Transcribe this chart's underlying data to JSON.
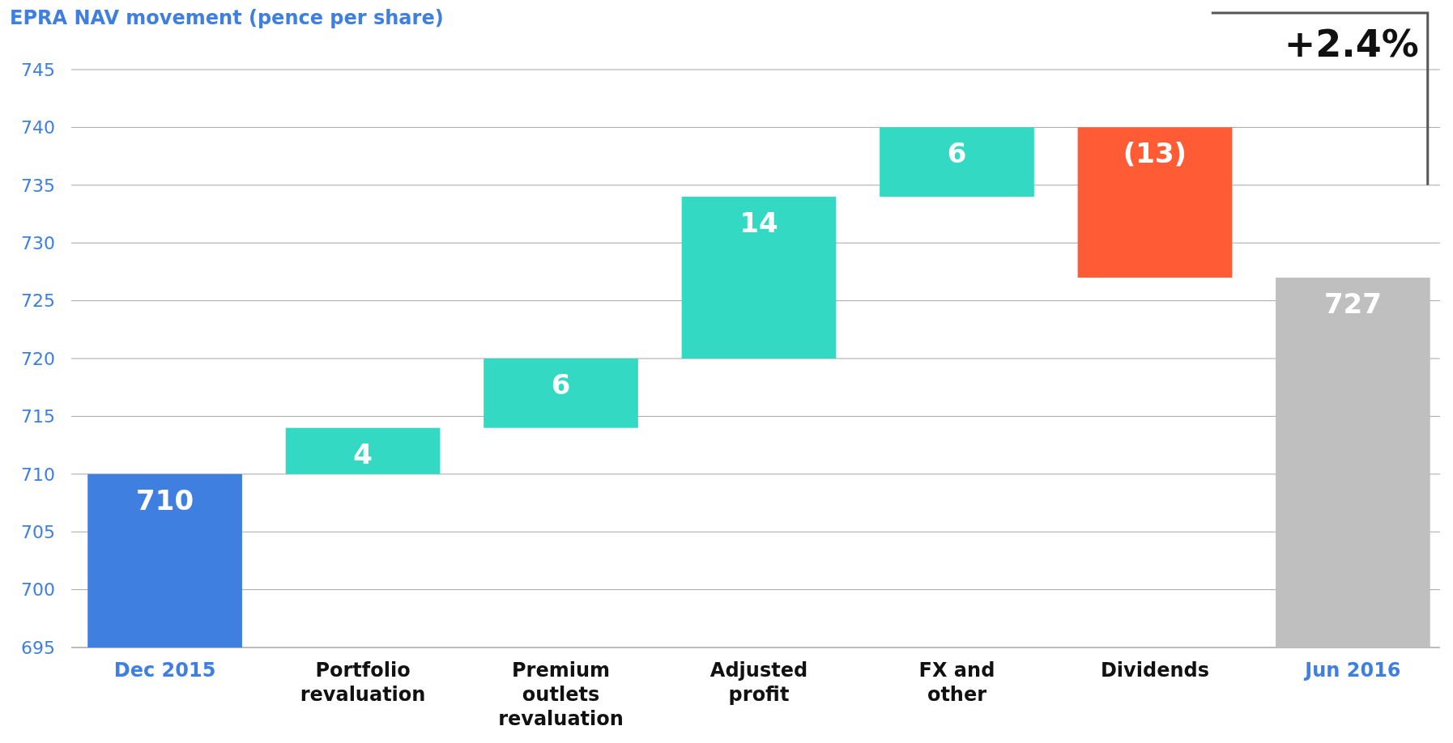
{
  "chart_data": {
    "type": "bar",
    "title": "EPRA NAV movement (pence per share)",
    "categories": [
      "Dec 2015",
      "Portfolio revaluation",
      "Premium outlets revaluation",
      "Adjusted profit",
      "FX and other",
      "Dividends",
      "Jun 2016"
    ],
    "values": [
      710,
      4,
      6,
      14,
      6,
      -13,
      727
    ],
    "base": [
      null,
      710,
      714,
      720,
      734,
      740,
      null
    ],
    "colors": [
      "#3e7fe0",
      "#34d9c3",
      "#34d9c3",
      "#34d9c3",
      "#34d9c3",
      "#ff5c35",
      "#bfbfbf"
    ],
    "value_labels": [
      "710",
      "4",
      "6",
      "14",
      "6",
      "(13)",
      "727"
    ],
    "ylim": [
      695,
      745
    ],
    "yticks": [
      695,
      700,
      705,
      710,
      715,
      720,
      725,
      730,
      735,
      740,
      745
    ],
    "grid": "y",
    "annotations": [
      "+2.4%"
    ]
  }
}
